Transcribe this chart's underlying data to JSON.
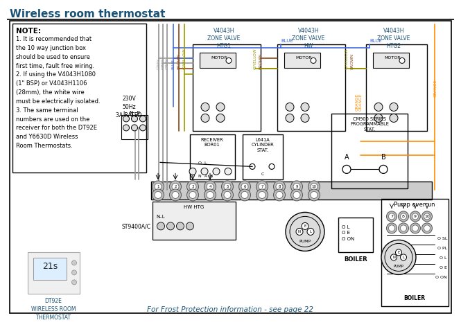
{
  "title": "Wireless room thermostat",
  "title_color": "#1a5276",
  "bg": "#ffffff",
  "border": "#000000",
  "note_title": "NOTE:",
  "note_lines": "1. It is recommended that\nthe 10 way junction box\nshould be used to ensure\nfirst time, fault free wiring.\n2. If using the V4043H1080\n(1\" BSP) or V4043H1106\n(28mm), the white wire\nmust be electrically isolated.\n3. The same terminal\nnumbers are used on the\nreceiver for both the DT92E\nand Y6630D Wireless\nRoom Thermostats.",
  "zone_labels": [
    "V4043H\nZONE VALVE\nHTG1",
    "V4043H\nZONE VALVE\nHW",
    "V4043H\nZONE VALVE\nHTG2"
  ],
  "wc": {
    "grey": "#999999",
    "blue": "#4169e1",
    "brown": "#8b4513",
    "gyellow": "#999900",
    "orange": "#ff8c00",
    "black": "#000000"
  },
  "bottom_text": "For Frost Protection information - see page 22",
  "bottom_color": "#1a5276",
  "thermostat_label": "DT92E\nWIRELESS ROOM\nTHERMOSTAT",
  "pump_overrun_label": "Pump overrun",
  "receiver_label": "RECEIVER\nBOR01",
  "cylinder_stat_label": "L641A\nCYLINDER\nSTAT.",
  "cm900_label": "CM900 SERIES\nPROGRAMMABLE\nSTAT.",
  "st9400_label": "ST9400A/C",
  "power_label": "230V\n50Hz\n3A RATED",
  "boiler_label": "BOILER",
  "hw_htg_label": "HW HTG",
  "pump_label": "N E L\nPUMP"
}
